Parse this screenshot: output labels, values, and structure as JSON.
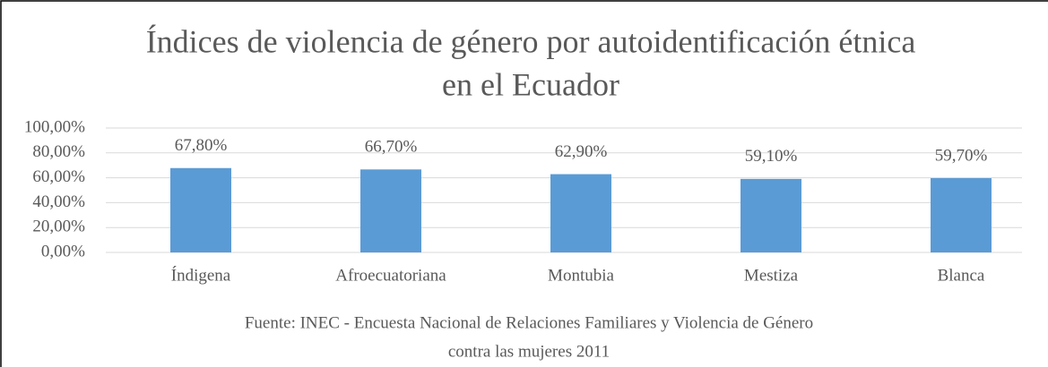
{
  "chart_data": {
    "type": "bar",
    "title": [
      "Índices de violencia de género por autoidentificación étnica",
      "en el Ecuador"
    ],
    "categories": [
      "Índigena",
      "Afroecuatoriana",
      "Montubia",
      "Mestiza",
      "Blanca"
    ],
    "values": [
      67.8,
      66.7,
      62.9,
      59.1,
      59.7
    ],
    "value_labels": [
      "67,80%",
      "66,70%",
      "62,90%",
      "59,10%",
      "59,70%"
    ],
    "color": "#5b9bd5",
    "ylim": [
      0,
      100
    ],
    "yticks": [
      {
        "value": 0,
        "label": "0,00%"
      },
      {
        "value": 20,
        "label": "20,00%"
      },
      {
        "value": 40,
        "label": "40,00%"
      },
      {
        "value": 60,
        "label": "60,00%"
      },
      {
        "value": 80,
        "label": "80,00%"
      },
      {
        "value": 100,
        "label": "100,00%"
      }
    ],
    "grid": true,
    "source": [
      "Fuente: INEC - Encuesta Nacional de Relaciones Familiares y Violencia de Género",
      "contra las mujeres 2011"
    ]
  }
}
